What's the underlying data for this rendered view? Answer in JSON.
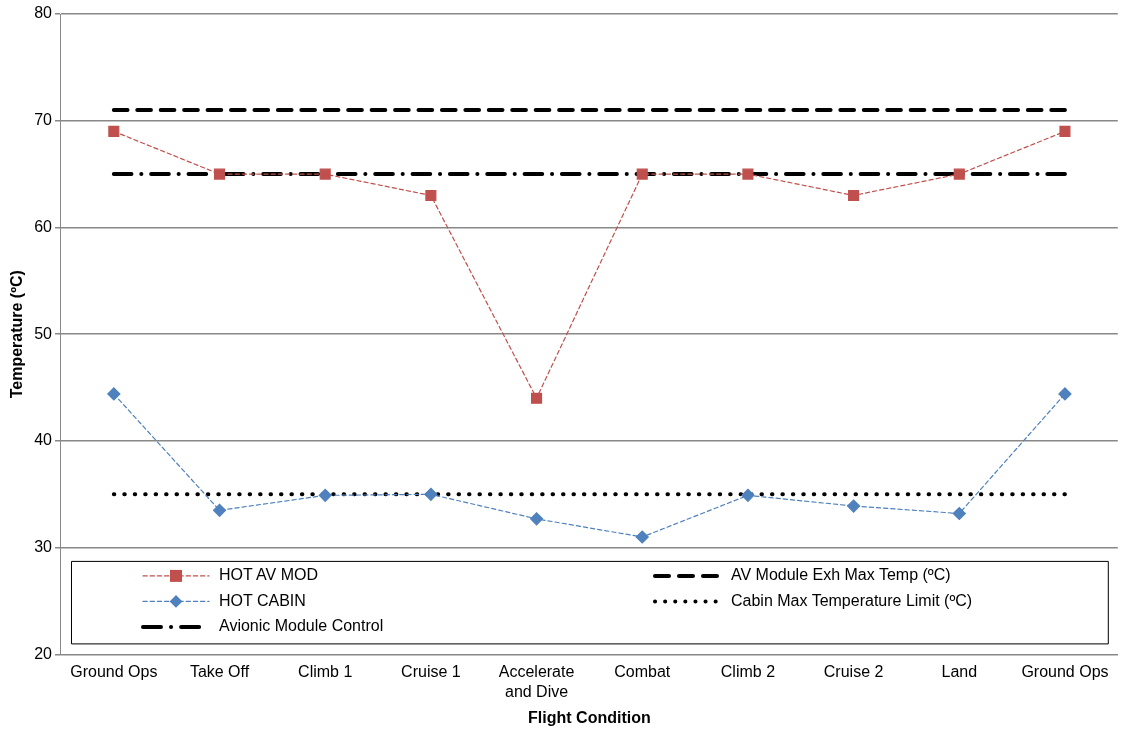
{
  "chart_data": {
    "type": "line",
    "xlabel": "Flight Condition",
    "ylabel": "Temperature (ºC)",
    "categories": [
      "Ground Ops",
      "Take Off",
      "Climb 1",
      "Cruise 1",
      "Accelerate and Dive",
      "Combat",
      "Climb 2",
      "Cruise 2",
      "Land",
      "Ground Ops"
    ],
    "ylim": [
      20,
      80
    ],
    "yticks": [
      20,
      30,
      40,
      50,
      60,
      70,
      80
    ],
    "grid": "y",
    "legend": "bottom",
    "series": [
      {
        "name": "HOT AV MOD",
        "color": "#c0504d",
        "marker": "square",
        "line_style": "dashed",
        "values": [
          69,
          65,
          65,
          63,
          44,
          65,
          65,
          63,
          65,
          69
        ]
      },
      {
        "name": "AV Module Exh Max Temp (ºC)",
        "color": "#000000",
        "marker": "none",
        "line_style": "dashed",
        "values": [
          71,
          71,
          71,
          71,
          71,
          71,
          71,
          71,
          71,
          71
        ]
      },
      {
        "name": "HOT CABIN",
        "color": "#4f81bd",
        "marker": "diamond",
        "line_style": "dashed",
        "values": [
          44.4,
          33.5,
          34.9,
          35,
          32.7,
          31,
          34.9,
          33.9,
          33.2,
          44.4
        ]
      },
      {
        "name": "Cabin Max Temperature Limit (ºC)",
        "color": "#000000",
        "marker": "none",
        "line_style": "dotted",
        "values": [
          35,
          35,
          35,
          35,
          35,
          35,
          35,
          35,
          35,
          35
        ]
      },
      {
        "name": "Avionic Module Control",
        "color": "#000000",
        "marker": "none",
        "line_style": "dashdot",
        "values": [
          65,
          65,
          65,
          65,
          65,
          65,
          65,
          65,
          65,
          65
        ]
      }
    ]
  }
}
